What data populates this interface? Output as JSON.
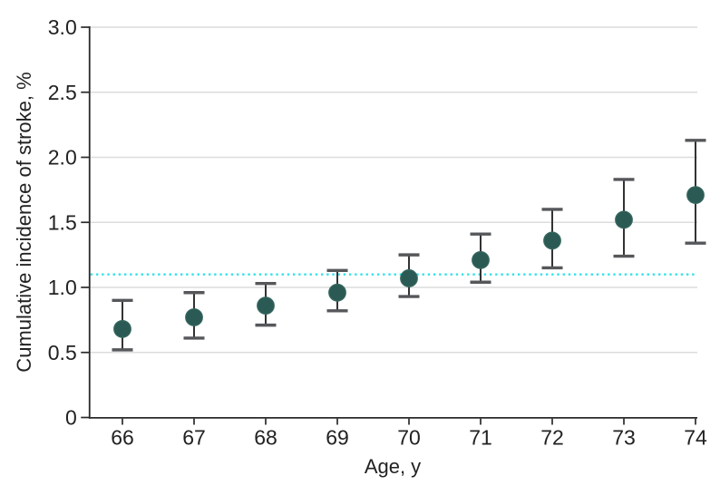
{
  "chart_data": {
    "type": "scatter",
    "title": "",
    "xlabel": "Age, y",
    "ylabel": "Cumulative incidence of stroke, %",
    "x_ticks": [
      66,
      67,
      68,
      69,
      70,
      71,
      72,
      73,
      74
    ],
    "x_tick_labels": [
      "66",
      "67",
      "68",
      "69",
      "70",
      "71",
      "72",
      "73",
      "74"
    ],
    "y_tick_values": [
      0,
      0.5,
      1.0,
      1.5,
      2.0,
      2.5,
      3.0
    ],
    "y_tick_labels": [
      "0",
      "0.5",
      "1.0",
      "1.5",
      "2.0",
      "2.5",
      "3.0"
    ],
    "xlim": [
      66,
      74
    ],
    "ylim": [
      0,
      3.0
    ],
    "grid": "horizontal",
    "legend": "none",
    "reference_line": {
      "value": 1.1,
      "style": "dotted",
      "color": "#31E1E9"
    },
    "series": [
      {
        "marker": "circle",
        "marker_color": "#2B5A55",
        "marker_edge_color": "#38685F",
        "error_bar_line_color": "#333335",
        "error_bar_cap_color": "#56575A",
        "points": [
          {
            "x": 66,
            "y": 0.68,
            "ci_low": 0.52,
            "ci_high": 0.9
          },
          {
            "x": 67,
            "y": 0.77,
            "ci_low": 0.61,
            "ci_high": 0.96
          },
          {
            "x": 68,
            "y": 0.86,
            "ci_low": 0.71,
            "ci_high": 1.03
          },
          {
            "x": 69,
            "y": 0.96,
            "ci_low": 0.82,
            "ci_high": 1.13
          },
          {
            "x": 70,
            "y": 1.07,
            "ci_low": 0.93,
            "ci_high": 1.25
          },
          {
            "x": 71,
            "y": 1.21,
            "ci_low": 1.04,
            "ci_high": 1.41
          },
          {
            "x": 72,
            "y": 1.36,
            "ci_low": 1.15,
            "ci_high": 1.6
          },
          {
            "x": 73,
            "y": 1.52,
            "ci_low": 1.24,
            "ci_high": 1.83
          },
          {
            "x": 74,
            "y": 1.71,
            "ci_low": 1.34,
            "ci_high": 2.13
          }
        ]
      }
    ],
    "colors": {
      "axis": "#2A2A2A",
      "gridline": "#DCDCDC",
      "tick_text": "#222222",
      "background": "#FFFFFF"
    }
  }
}
